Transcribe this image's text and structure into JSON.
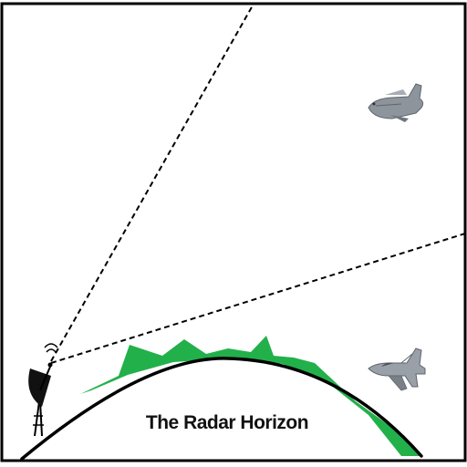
{
  "diagram": {
    "caption": "The Radar Horizon",
    "colors": {
      "frame": "#000000",
      "terrain": "#22b04b",
      "earth_line": "#000000",
      "sight_lines": "#000000",
      "aircraft": "#8e949c"
    },
    "icons": {
      "radar": "radar-dish-icon",
      "high_aircraft": "transport-aircraft-icon",
      "low_aircraft": "fighter-jet-icon"
    }
  }
}
